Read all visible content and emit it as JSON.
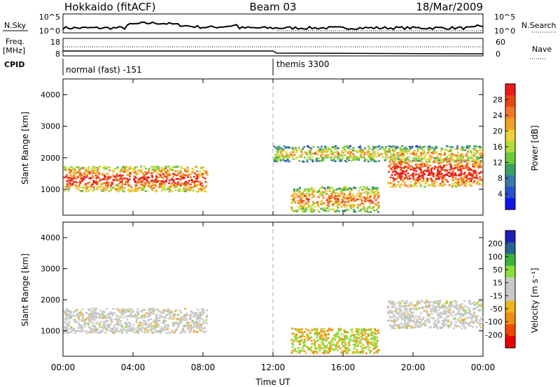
{
  "header": {
    "station": "Hokkaido (fitACF)",
    "beam": "Beam 03",
    "date": "18/Mar/2009"
  },
  "labels": {
    "nsky": "N.Sky",
    "nsearch": "N.Search",
    "freq_line1": "Freq.",
    "freq_line2": "[MHz]",
    "nave": "Nave",
    "cpid": "CPID",
    "time_axis": "Time UT",
    "slant_range": "Slant Range [km]",
    "power_cb": "Power [dB]",
    "velocity_cb": "Velocity [m s⁻¹]"
  },
  "ticks": {
    "noise_left": [
      "10^5",
      "10^0"
    ],
    "noise_right": [
      "10^5",
      "10^0"
    ],
    "freq_left": [
      "18",
      "8"
    ],
    "freq_right": [
      "60",
      "0"
    ],
    "range": [
      "1000",
      "2000",
      "3000",
      "4000"
    ],
    "time": [
      "00:00",
      "04:00",
      "08:00",
      "12:00",
      "16:00",
      "20:00",
      "00:00"
    ],
    "power": [
      "4",
      "8",
      "12",
      "16",
      "20",
      "24",
      "28"
    ],
    "velocity": [
      "200",
      "100",
      "50",
      "15",
      "-15",
      "-50",
      "-100",
      "-200"
    ]
  },
  "cpid_segments": [
    {
      "start_hour": 0,
      "label": "normal (fast) -151"
    },
    {
      "start_hour": 12,
      "label": "themis 3300"
    }
  ],
  "chart_data": [
    {
      "type": "heatmap",
      "title": "Power",
      "xlabel": "Time UT",
      "ylabel": "Slant Range [km]",
      "xlim_hours": [
        0,
        24
      ],
      "ylim_km": [
        180,
        4500
      ],
      "colorbar": {
        "label": "Power [dB]",
        "range": [
          0,
          32
        ],
        "colors": [
          "#1414e6",
          "#2a52c8",
          "#3c7aa8",
          "#3ca064",
          "#6cc83c",
          "#b4dc3c",
          "#f0d23c",
          "#f0a028",
          "#f07828",
          "#e64614",
          "#e61e1e"
        ]
      },
      "regions": [
        {
          "t": [
            0,
            8.2
          ],
          "range_km": [
            950,
            1750
          ],
          "level_db": 22
        },
        {
          "t": [
            12,
            24
          ],
          "range_km": [
            1900,
            2400
          ],
          "level_db": 10
        },
        {
          "t": [
            18.5,
            24
          ],
          "range_km": [
            1100,
            2000
          ],
          "level_db": 26
        },
        {
          "t": [
            13,
            18
          ],
          "range_km": [
            300,
            1100
          ],
          "level_db": 16
        }
      ]
    },
    {
      "type": "heatmap",
      "title": "Velocity",
      "xlabel": "Time UT",
      "ylabel": "Slant Range [km]",
      "xlim_hours": [
        0,
        24
      ],
      "ylim_km": [
        180,
        4500
      ],
      "colorbar": {
        "label": "Velocity [m s⁻¹]",
        "range": [
          -250,
          250
        ],
        "colors": [
          "#e60000",
          "#f04a00",
          "#f08c14",
          "#f0b41e",
          "#c8c8c8",
          "#c8c8c8",
          "#8cdc3c",
          "#3cb43c",
          "#28648c",
          "#1e1eb4"
        ]
      },
      "regions": [
        {
          "t": [
            0,
            8.2
          ],
          "range_km": [
            950,
            1750
          ],
          "velocity_ms": 0
        },
        {
          "t": [
            18.5,
            24
          ],
          "range_km": [
            1100,
            2000
          ],
          "velocity_ms": 0
        },
        {
          "t": [
            13,
            18
          ],
          "range_km": [
            300,
            1100
          ],
          "velocity_ms": 40
        }
      ]
    }
  ]
}
